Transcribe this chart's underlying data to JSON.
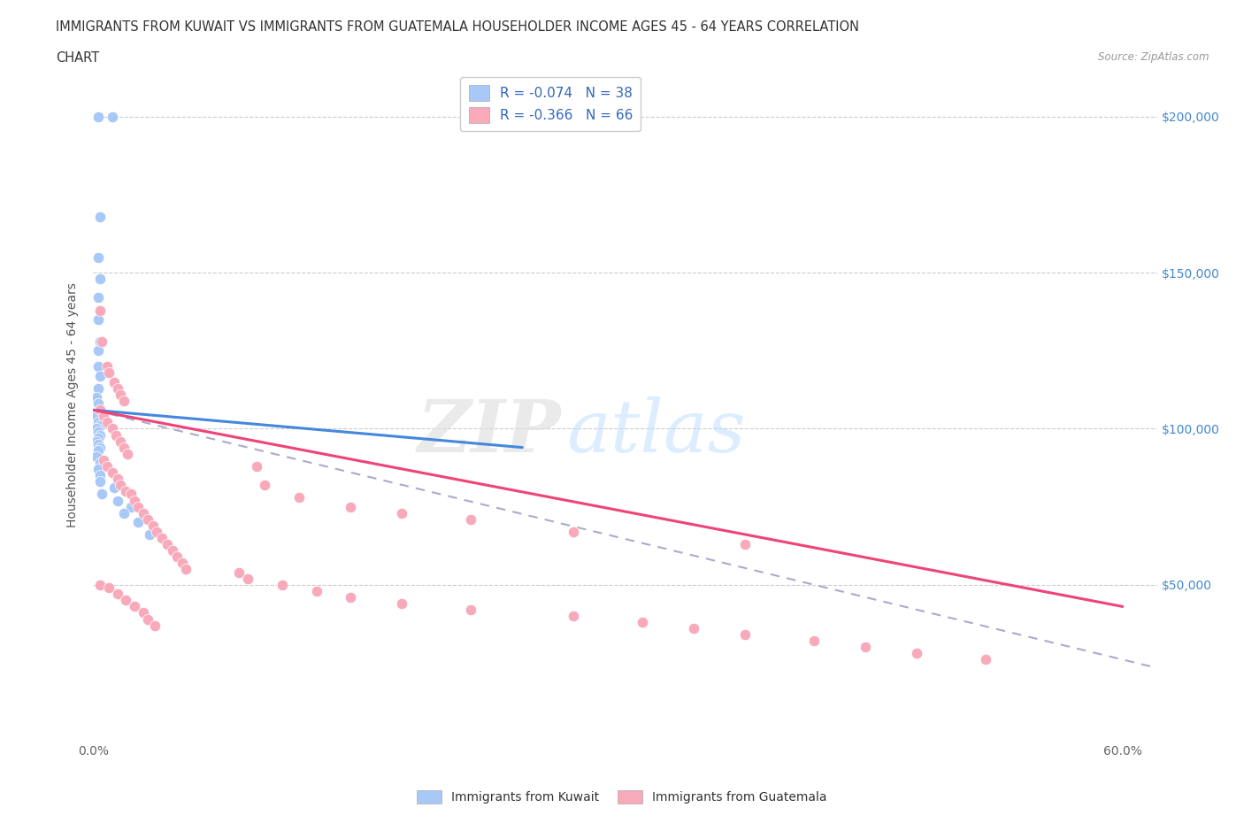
{
  "title_line1": "IMMIGRANTS FROM KUWAIT VS IMMIGRANTS FROM GUATEMALA HOUSEHOLDER INCOME AGES 45 - 64 YEARS CORRELATION",
  "title_line2": "CHART",
  "source": "Source: ZipAtlas.com",
  "ylabel": "Householder Income Ages 45 - 64 years",
  "xlim": [
    0.0,
    0.62
  ],
  "ylim": [
    0,
    215000
  ],
  "xticks": [
    0.0,
    0.1,
    0.2,
    0.3,
    0.4,
    0.5,
    0.6
  ],
  "xticklabels": [
    "0.0%",
    "",
    "",
    "",
    "",
    "",
    "60.0%"
  ],
  "yticks": [
    0,
    50000,
    100000,
    150000,
    200000
  ],
  "kuwait_color": "#a8c8f8",
  "kuwait_line_color": "#4488dd",
  "guatemala_color": "#f8aabb",
  "guatemala_line_color": "#ee4477",
  "dashed_line_color": "#aaaacc",
  "R_kuwait": -0.074,
  "N_kuwait": 38,
  "R_guatemala": -0.366,
  "N_guatemala": 66,
  "legend_labels": [
    "Immigrants from Kuwait",
    "Immigrants from Guatemala"
  ],
  "kuwait_scatter": [
    [
      0.003,
      200000
    ],
    [
      0.011,
      200000
    ],
    [
      0.004,
      168000
    ],
    [
      0.003,
      155000
    ],
    [
      0.004,
      148000
    ],
    [
      0.003,
      142000
    ],
    [
      0.003,
      135000
    ],
    [
      0.004,
      128000
    ],
    [
      0.003,
      125000
    ],
    [
      0.003,
      120000
    ],
    [
      0.004,
      117000
    ],
    [
      0.003,
      113000
    ],
    [
      0.002,
      110000
    ],
    [
      0.003,
      108000
    ],
    [
      0.004,
      106000
    ],
    [
      0.002,
      104000
    ],
    [
      0.003,
      102000
    ],
    [
      0.004,
      101000
    ],
    [
      0.002,
      100000
    ],
    [
      0.003,
      99000
    ],
    [
      0.004,
      98000
    ],
    [
      0.003,
      97000
    ],
    [
      0.002,
      96000
    ],
    [
      0.003,
      95000
    ],
    [
      0.004,
      94000
    ],
    [
      0.003,
      93000
    ],
    [
      0.002,
      91000
    ],
    [
      0.004,
      89000
    ],
    [
      0.003,
      87000
    ],
    [
      0.004,
      85000
    ],
    [
      0.004,
      83000
    ],
    [
      0.012,
      81000
    ],
    [
      0.005,
      79000
    ],
    [
      0.014,
      77000
    ],
    [
      0.022,
      75000
    ],
    [
      0.018,
      73000
    ],
    [
      0.026,
      70000
    ],
    [
      0.033,
      66000
    ]
  ],
  "guatemala_scatter": [
    [
      0.004,
      138000
    ],
    [
      0.005,
      128000
    ],
    [
      0.008,
      120000
    ],
    [
      0.009,
      118000
    ],
    [
      0.012,
      115000
    ],
    [
      0.014,
      113000
    ],
    [
      0.016,
      111000
    ],
    [
      0.018,
      109000
    ],
    [
      0.004,
      106000
    ],
    [
      0.006,
      104000
    ],
    [
      0.008,
      102000
    ],
    [
      0.011,
      100000
    ],
    [
      0.013,
      98000
    ],
    [
      0.016,
      96000
    ],
    [
      0.018,
      94000
    ],
    [
      0.02,
      92000
    ],
    [
      0.006,
      90000
    ],
    [
      0.008,
      88000
    ],
    [
      0.011,
      86000
    ],
    [
      0.014,
      84000
    ],
    [
      0.016,
      82000
    ],
    [
      0.019,
      80000
    ],
    [
      0.022,
      79000
    ],
    [
      0.024,
      77000
    ],
    [
      0.026,
      75000
    ],
    [
      0.029,
      73000
    ],
    [
      0.032,
      71000
    ],
    [
      0.035,
      69000
    ],
    [
      0.037,
      67000
    ],
    [
      0.04,
      65000
    ],
    [
      0.043,
      63000
    ],
    [
      0.046,
      61000
    ],
    [
      0.049,
      59000
    ],
    [
      0.052,
      57000
    ],
    [
      0.054,
      55000
    ],
    [
      0.004,
      50000
    ],
    [
      0.009,
      49000
    ],
    [
      0.014,
      47000
    ],
    [
      0.019,
      45000
    ],
    [
      0.024,
      43000
    ],
    [
      0.029,
      41000
    ],
    [
      0.032,
      39000
    ],
    [
      0.036,
      37000
    ],
    [
      0.095,
      88000
    ],
    [
      0.1,
      82000
    ],
    [
      0.12,
      78000
    ],
    [
      0.15,
      75000
    ],
    [
      0.18,
      73000
    ],
    [
      0.22,
      71000
    ],
    [
      0.28,
      67000
    ],
    [
      0.38,
      63000
    ],
    [
      0.085,
      54000
    ],
    [
      0.09,
      52000
    ],
    [
      0.11,
      50000
    ],
    [
      0.13,
      48000
    ],
    [
      0.15,
      46000
    ],
    [
      0.18,
      44000
    ],
    [
      0.22,
      42000
    ],
    [
      0.28,
      40000
    ],
    [
      0.32,
      38000
    ],
    [
      0.35,
      36000
    ],
    [
      0.38,
      34000
    ],
    [
      0.42,
      32000
    ],
    [
      0.45,
      30000
    ],
    [
      0.48,
      28000
    ],
    [
      0.52,
      26000
    ]
  ],
  "kuwait_trendline": [
    [
      0.0,
      106000
    ],
    [
      0.25,
      94000
    ]
  ],
  "guatemala_trendline": [
    [
      0.0,
      106000
    ],
    [
      0.6,
      43000
    ]
  ],
  "dashed_trendline": [
    [
      0.0,
      106000
    ],
    [
      0.66,
      18000
    ]
  ]
}
